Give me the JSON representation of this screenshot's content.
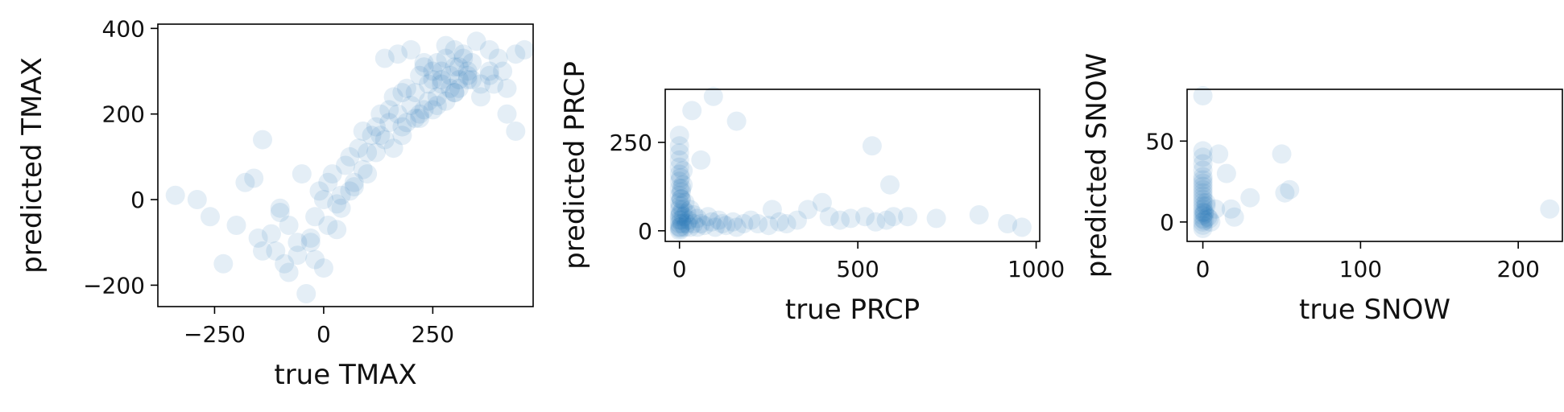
{
  "chart_data": [
    {
      "type": "scatter",
      "xlabel": "true TMAX",
      "ylabel": "predicted TMAX",
      "xlim": [
        -380,
        480
      ],
      "ylim": [
        -250,
        410
      ],
      "xticks": [
        -250,
        0,
        250
      ],
      "yticks": [
        -200,
        0,
        200,
        400
      ],
      "xtick_labels": [
        "−250",
        "0",
        "250"
      ],
      "ytick_labels": [
        "−200",
        "0",
        "200",
        "400"
      ],
      "grid": false,
      "marker_color": "#1f77b4",
      "marker_alpha": 0.12,
      "x": [
        -340,
        -290,
        -260,
        -230,
        -200,
        -180,
        -160,
        -150,
        -140,
        -120,
        -110,
        -100,
        -90,
        -80,
        -60,
        -40,
        -30,
        -20,
        -10,
        0,
        10,
        20,
        30,
        40,
        50,
        60,
        70,
        80,
        90,
        100,
        110,
        120,
        130,
        140,
        150,
        160,
        170,
        180,
        190,
        200,
        210,
        220,
        230,
        240,
        250,
        260,
        270,
        280,
        290,
        300,
        310,
        320,
        330,
        340,
        360,
        380,
        400,
        420,
        440,
        460,
        140,
        170,
        200,
        230,
        260,
        280,
        300,
        320,
        350,
        380,
        410,
        440,
        120,
        150,
        180,
        210,
        240,
        270,
        300,
        330,
        360,
        390,
        100,
        130,
        160,
        190,
        220,
        250,
        280,
        310,
        -60,
        -80,
        -20,
        10,
        40,
        70,
        90,
        -140,
        -100,
        -50,
        30,
        60,
        0,
        -30,
        180,
        220,
        260,
        300,
        340,
        380,
        420,
        250,
        230,
        270,
        290,
        310,
        330
      ],
      "y": [
        10,
        0,
        -40,
        -150,
        -60,
        40,
        50,
        -90,
        140,
        -80,
        -120,
        -30,
        -150,
        -60,
        -130,
        -220,
        -100,
        -40,
        20,
        0,
        40,
        60,
        -70,
        10,
        80,
        100,
        40,
        120,
        160,
        60,
        150,
        110,
        200,
        140,
        180,
        240,
        200,
        150,
        260,
        220,
        250,
        290,
        210,
        270,
        300,
        240,
        280,
        330,
        260,
        310,
        280,
        340,
        300,
        320,
        270,
        290,
        330,
        200,
        160,
        350,
        330,
        340,
        350,
        310,
        320,
        360,
        350,
        330,
        370,
        350,
        300,
        340,
        170,
        210,
        250,
        190,
        230,
        270,
        250,
        290,
        240,
        270,
        110,
        150,
        120,
        180,
        200,
        210,
        230,
        260,
        -100,
        -170,
        -140,
        -60,
        -20,
        30,
        70,
        -120,
        -20,
        60,
        -10,
        20,
        -160,
        -90,
        170,
        190,
        220,
        250,
        280,
        300,
        260,
        280,
        320,
        300,
        290,
        310,
        280
      ]
    },
    {
      "type": "scatter",
      "xlabel": "true PRCP",
      "ylabel": "predicted PRCP",
      "xlim": [
        -40,
        1010
      ],
      "ylim": [
        -30,
        400
      ],
      "xticks": [
        0,
        500,
        1000
      ],
      "yticks": [
        0,
        250
      ],
      "xtick_labels": [
        "0",
        "500",
        "1000"
      ],
      "ytick_labels": [
        "0",
        "250"
      ],
      "grid": false,
      "marker_color": "#1f77b4",
      "marker_alpha": 0.12,
      "x": [
        0,
        0,
        0,
        0,
        0,
        0,
        0,
        0,
        0,
        0,
        0,
        0,
        0,
        0,
        2,
        3,
        5,
        5,
        8,
        10,
        10,
        12,
        15,
        15,
        20,
        20,
        25,
        30,
        30,
        40,
        40,
        50,
        50,
        60,
        70,
        80,
        90,
        100,
        110,
        120,
        130,
        150,
        160,
        180,
        200,
        220,
        250,
        280,
        300,
        330,
        360,
        400,
        420,
        450,
        480,
        520,
        550,
        580,
        600,
        640,
        720,
        840,
        920,
        960,
        35,
        95,
        160,
        260,
        540,
        590,
        60,
        10,
        5,
        3,
        1,
        0,
        0,
        1,
        2,
        4,
        6
      ],
      "y": [
        0,
        20,
        40,
        60,
        80,
        100,
        120,
        140,
        160,
        180,
        200,
        220,
        240,
        270,
        10,
        50,
        30,
        90,
        20,
        60,
        130,
        40,
        10,
        80,
        50,
        20,
        30,
        10,
        60,
        20,
        45,
        10,
        35,
        20,
        15,
        40,
        25,
        10,
        30,
        20,
        15,
        25,
        10,
        20,
        30,
        20,
        15,
        25,
        20,
        30,
        60,
        80,
        40,
        30,
        35,
        40,
        25,
        30,
        40,
        40,
        35,
        45,
        20,
        10,
        340,
        380,
        310,
        60,
        240,
        130,
        200,
        170,
        110,
        150,
        5,
        10,
        30,
        45,
        70,
        90,
        120
      ]
    },
    {
      "type": "scatter",
      "xlabel": "true SNOW",
      "ylabel": "predicted SNOW",
      "xlim": [
        -10,
        228
      ],
      "ylim": [
        -12,
        82
      ],
      "xticks": [
        0,
        100,
        200
      ],
      "yticks": [
        0,
        50
      ],
      "xtick_labels": [
        "0",
        "100",
        "200"
      ],
      "ytick_labels": [
        "0",
        "50"
      ],
      "grid": false,
      "marker_color": "#1f77b4",
      "marker_alpha": 0.12,
      "x": [
        0,
        0,
        0,
        0,
        0,
        0,
        0,
        0,
        0,
        0,
        0,
        0,
        0,
        0,
        0,
        0,
        0,
        0,
        0,
        0,
        1,
        1,
        2,
        3,
        5,
        8,
        10,
        15,
        18,
        20,
        30,
        50,
        52,
        55,
        220,
        0,
        2,
        1,
        0,
        4
      ],
      "y": [
        0,
        2,
        4,
        6,
        8,
        10,
        12,
        14,
        16,
        18,
        20,
        24,
        28,
        32,
        36,
        40,
        44,
        78,
        -4,
        -2,
        1,
        5,
        10,
        3,
        0,
        8,
        42,
        30,
        8,
        3,
        15,
        42,
        18,
        20,
        8,
        22,
        12,
        6,
        26,
        2
      ]
    }
  ]
}
